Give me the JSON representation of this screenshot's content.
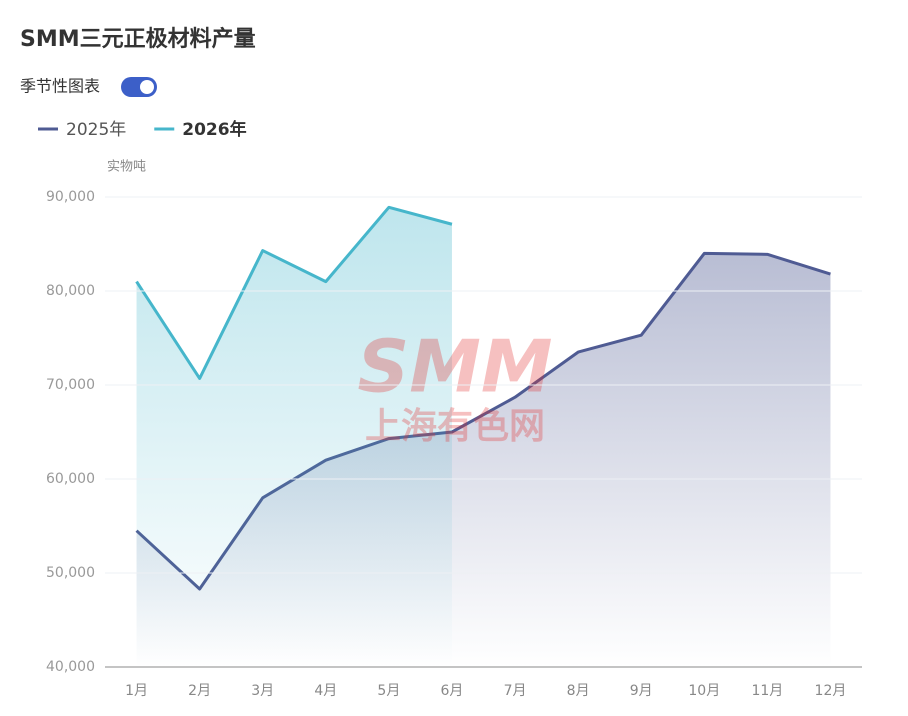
{
  "chart_data": {
    "type": "line",
    "title": "SMM三元正极材料产量",
    "toggle_label": "季节性图表",
    "y_axis_label": "实物吨",
    "watermark": [
      "SMM",
      "上海有色网"
    ],
    "categories": [
      "1月",
      "2月",
      "3月",
      "4月",
      "5月",
      "6月",
      "7月",
      "8月",
      "9月",
      "10月",
      "11月",
      "12月"
    ],
    "series": [
      {
        "name": "2025年",
        "color": "#4f5b93",
        "values": [
          54500,
          48300,
          58000,
          62000,
          64300,
          65000,
          68700,
          73500,
          75300,
          84000,
          83900,
          81800
        ]
      },
      {
        "name": "2026年",
        "color": "#46b6cb",
        "values": [
          81000,
          70700,
          84300,
          81000,
          88900,
          87100,
          null,
          null,
          null,
          null,
          null,
          null
        ]
      }
    ],
    "ylim": [
      40000,
      90000
    ],
    "yticks": [
      {
        "value": 40000,
        "label": "40,000"
      },
      {
        "value": 50000,
        "label": "50,000"
      },
      {
        "value": 60000,
        "label": "60,000"
      },
      {
        "value": 70000,
        "label": "70,000"
      },
      {
        "value": 80000,
        "label": "80,000"
      },
      {
        "value": 90000,
        "label": "90,000"
      }
    ],
    "grid": true
  }
}
